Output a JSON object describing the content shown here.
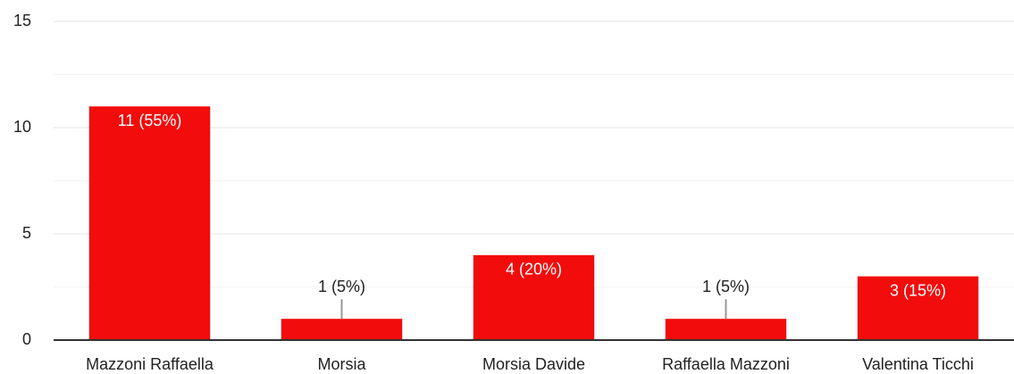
{
  "chart_data": {
    "type": "bar",
    "categories": [
      "Mazzoni Raffaella",
      "Morsia",
      "Morsia Davide",
      "Raffaella Mazzoni",
      "Valentina Ticchi"
    ],
    "values": [
      11,
      1,
      4,
      1,
      3
    ],
    "value_labels": [
      "11 (55%)",
      "1 (5%)",
      "4 (20%)",
      "1 (5%)",
      "3 (15%)"
    ],
    "color": "#f20c0c",
    "ylim": [
      0,
      15
    ],
    "yticks": [
      0,
      5,
      10,
      15
    ],
    "grid": true
  }
}
